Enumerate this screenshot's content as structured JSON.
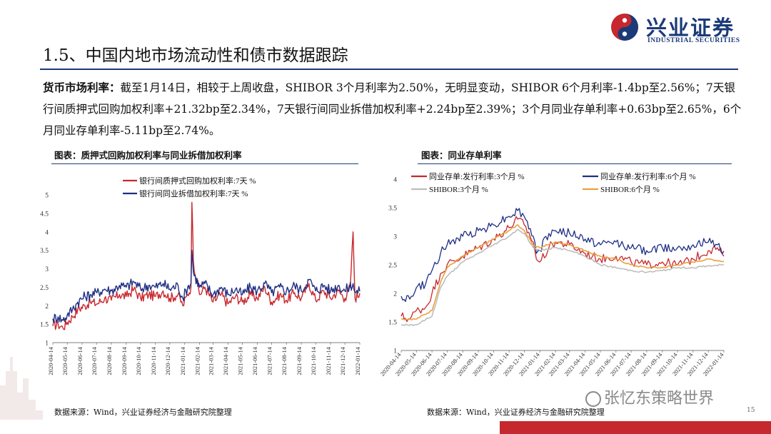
{
  "brand": {
    "name_cn": "兴业证券",
    "name_en": "INDUSTRIAL SECURITIES"
  },
  "page": {
    "title": "1.5、中国内地市场流动性和债市数据跟踪",
    "number": "15"
  },
  "paragraph": {
    "label": "货币市场利率：",
    "text": "截至1月14日，相较于上周收盘，SHIBOR 3个月利率为2.50%，无明显变动，SHIBOR 6个月利率-1.4bp至2.56%；7天银行间质押式回购加权利率+21.32bp至2.34%，7天银行间同业拆借加权利率+2.24bp至2.39%；3个月同业存单利率+0.63bp至2.65%，6个月同业存单利率-5.11bp至2.74%。"
  },
  "watermark": "张忆东策略世界",
  "colors": {
    "red": "#c8282d",
    "navy": "#1f2f84",
    "gray": "#bdbdbd",
    "orange": "#e8a040",
    "brand": "#1b3a78"
  },
  "chart_data": [
    {
      "type": "line",
      "caption": "图表：质押式回购加权利率与同业拆借加权利率",
      "source": "数据来源：Wind，兴业证券经济与金融研究院整理",
      "ylim": [
        1,
        5
      ],
      "yticks": [
        "1",
        "1.5",
        "2",
        "2.5",
        "3",
        "3.5",
        "4",
        "4.5",
        "5"
      ],
      "x_ticks": [
        "2020-04-14",
        "2020-05-14",
        "2020-06-14",
        "2020-07-14",
        "2020-08-14",
        "2020-09-14",
        "2020-10-14",
        "2020-11-14",
        "2020-12-14",
        "2021-01-14",
        "2021-02-14",
        "2021-03-14",
        "2021-04-14",
        "2021-05-14",
        "2021-06-14",
        "2021-07-14",
        "2021-08-14",
        "2021-09-14",
        "2021-10-14",
        "2021-11-14",
        "2021-12-14",
        "2022-01-14"
      ],
      "x_range": [
        "2020-04-14",
        "2022-01-14"
      ],
      "series": [
        {
          "name": "银行间质押式回购加权利率:7天  %",
          "color": "#c8282d",
          "width": 1.4,
          "points": [
            [
              "2020-04-14",
              1.45
            ],
            [
              "2020-04-25",
              1.5
            ],
            [
              "2020-05-05",
              1.4
            ],
            [
              "2020-05-14",
              1.55
            ],
            [
              "2020-05-25",
              1.7
            ],
            [
              "2020-06-05",
              1.9
            ],
            [
              "2020-06-20",
              2.0
            ],
            [
              "2020-07-01",
              2.1
            ],
            [
              "2020-07-15",
              2.05
            ],
            [
              "2020-07-31",
              2.2
            ],
            [
              "2020-08-14",
              2.15
            ],
            [
              "2020-08-31",
              2.3
            ],
            [
              "2020-09-14",
              2.25
            ],
            [
              "2020-09-30",
              2.45
            ],
            [
              "2020-10-14",
              2.2
            ],
            [
              "2020-10-31",
              2.3
            ],
            [
              "2020-11-14",
              2.25
            ],
            [
              "2020-11-30",
              2.4
            ],
            [
              "2020-12-14",
              2.2
            ],
            [
              "2020-12-31",
              2.3
            ],
            [
              "2021-01-10",
              2.0
            ],
            [
              "2021-01-20",
              2.3
            ],
            [
              "2021-01-27",
              2.5
            ],
            [
              "2021-01-29",
              4.8
            ],
            [
              "2021-02-01",
              3.2
            ],
            [
              "2021-02-14",
              2.3
            ],
            [
              "2021-02-25",
              2.5
            ],
            [
              "2021-03-14",
              2.1
            ],
            [
              "2021-03-31",
              2.3
            ],
            [
              "2021-04-14",
              2.05
            ],
            [
              "2021-04-30",
              2.25
            ],
            [
              "2021-05-14",
              2.1
            ],
            [
              "2021-05-31",
              2.3
            ],
            [
              "2021-06-14",
              2.2
            ],
            [
              "2021-06-30",
              2.5
            ],
            [
              "2021-07-14",
              2.1
            ],
            [
              "2021-07-31",
              2.3
            ],
            [
              "2021-08-14",
              2.15
            ],
            [
              "2021-08-31",
              2.35
            ],
            [
              "2021-09-14",
              2.2
            ],
            [
              "2021-09-30",
              2.6
            ],
            [
              "2021-10-14",
              2.15
            ],
            [
              "2021-10-31",
              2.4
            ],
            [
              "2021-11-14",
              2.2
            ],
            [
              "2021-11-30",
              2.4
            ],
            [
              "2021-12-14",
              2.2
            ],
            [
              "2021-12-25",
              2.5
            ],
            [
              "2021-12-31",
              4.0
            ],
            [
              "2022-01-04",
              2.2
            ],
            [
              "2022-01-14",
              2.34
            ]
          ]
        },
        {
          "name": "银行间同业拆借加权利率:7天  %",
          "color": "#1f2f84",
          "width": 1.4,
          "points": [
            [
              "2020-04-14",
              1.65
            ],
            [
              "2020-04-25",
              1.7
            ],
            [
              "2020-05-05",
              1.6
            ],
            [
              "2020-05-14",
              1.75
            ],
            [
              "2020-05-25",
              1.9
            ],
            [
              "2020-06-05",
              2.1
            ],
            [
              "2020-06-20",
              2.25
            ],
            [
              "2020-07-01",
              2.3
            ],
            [
              "2020-07-15",
              2.35
            ],
            [
              "2020-07-31",
              2.45
            ],
            [
              "2020-08-14",
              2.4
            ],
            [
              "2020-08-31",
              2.55
            ],
            [
              "2020-09-14",
              2.5
            ],
            [
              "2020-09-30",
              2.65
            ],
            [
              "2020-10-14",
              2.45
            ],
            [
              "2020-10-31",
              2.55
            ],
            [
              "2020-11-14",
              2.5
            ],
            [
              "2020-11-30",
              2.6
            ],
            [
              "2020-12-14",
              2.45
            ],
            [
              "2020-12-31",
              2.55
            ],
            [
              "2021-01-10",
              2.2
            ],
            [
              "2021-01-20",
              2.5
            ],
            [
              "2021-01-27",
              2.6
            ],
            [
              "2021-01-29",
              3.5
            ],
            [
              "2021-02-01",
              2.9
            ],
            [
              "2021-02-14",
              2.5
            ],
            [
              "2021-02-25",
              2.6
            ],
            [
              "2021-03-14",
              2.3
            ],
            [
              "2021-03-31",
              2.5
            ],
            [
              "2021-04-14",
              2.3
            ],
            [
              "2021-04-30",
              2.45
            ],
            [
              "2021-05-14",
              2.3
            ],
            [
              "2021-05-31",
              2.5
            ],
            [
              "2021-06-14",
              2.4
            ],
            [
              "2021-06-30",
              2.6
            ],
            [
              "2021-07-14",
              2.35
            ],
            [
              "2021-07-31",
              2.5
            ],
            [
              "2021-08-14",
              2.4
            ],
            [
              "2021-08-31",
              2.55
            ],
            [
              "2021-09-14",
              2.4
            ],
            [
              "2021-09-30",
              2.7
            ],
            [
              "2021-10-14",
              2.4
            ],
            [
              "2021-10-31",
              2.55
            ],
            [
              "2021-11-14",
              2.4
            ],
            [
              "2021-11-30",
              2.55
            ],
            [
              "2021-12-14",
              2.4
            ],
            [
              "2021-12-31",
              2.6
            ],
            [
              "2022-01-04",
              2.35
            ],
            [
              "2022-01-14",
              2.39
            ]
          ]
        }
      ]
    },
    {
      "type": "line",
      "caption": "图表：同业存单利率",
      "source": "数据来源：Wind，兴业证券经济与金融研究院整理",
      "ylim": [
        1,
        4
      ],
      "yticks": [
        "1",
        "1.5",
        "2",
        "2.5",
        "3",
        "3.5",
        "4"
      ],
      "x_ticks": [
        "2020-04-14",
        "2020-05-14",
        "2020-06-14",
        "2020-07-14",
        "2020-08-14",
        "2020-09-14",
        "2020-10-14",
        "2020-11-14",
        "2020-12-14",
        "2021-01-14",
        "2021-02-14",
        "2021-03-14",
        "2021-04-14",
        "2021-05-14",
        "2021-06-14",
        "2021-07-14",
        "2021-08-14",
        "2021-09-14",
        "2021-10-14",
        "2021-11-14",
        "2021-12-14",
        "2022-01-14"
      ],
      "x_range": [
        "2020-04-14",
        "2022-01-14"
      ],
      "series": [
        {
          "name": "同业存单:发行利率:3个月  %",
          "color": "#c8282d",
          "width": 1.3,
          "points": [
            [
              "2020-04-14",
              1.6
            ],
            [
              "2020-05-01",
              1.55
            ],
            [
              "2020-05-14",
              1.7
            ],
            [
              "2020-06-01",
              1.75
            ],
            [
              "2020-06-14",
              2.0
            ],
            [
              "2020-07-01",
              2.35
            ],
            [
              "2020-07-14",
              2.5
            ],
            [
              "2020-08-14",
              2.65
            ],
            [
              "2020-09-14",
              2.8
            ],
            [
              "2020-10-14",
              2.95
            ],
            [
              "2020-11-14",
              3.15
            ],
            [
              "2020-12-01",
              3.3
            ],
            [
              "2020-12-14",
              3.2
            ],
            [
              "2021-01-01",
              2.9
            ],
            [
              "2021-01-07",
              2.6
            ],
            [
              "2021-01-14",
              2.55
            ],
            [
              "2021-02-01",
              2.8
            ],
            [
              "2021-02-14",
              2.9
            ],
            [
              "2021-03-14",
              2.85
            ],
            [
              "2021-04-14",
              2.7
            ],
            [
              "2021-05-14",
              2.6
            ],
            [
              "2021-06-14",
              2.65
            ],
            [
              "2021-07-14",
              2.55
            ],
            [
              "2021-08-14",
              2.5
            ],
            [
              "2021-09-14",
              2.55
            ],
            [
              "2021-10-14",
              2.5
            ],
            [
              "2021-11-14",
              2.6
            ],
            [
              "2021-12-14",
              2.75
            ],
            [
              "2022-01-01",
              2.8
            ],
            [
              "2022-01-14",
              2.65
            ]
          ]
        },
        {
          "name": "同业存单:发行利率:6个月  %",
          "color": "#1f2f84",
          "width": 1.3,
          "points": [
            [
              "2020-04-14",
              1.95
            ],
            [
              "2020-05-01",
              1.9
            ],
            [
              "2020-05-14",
              2.1
            ],
            [
              "2020-06-01",
              2.15
            ],
            [
              "2020-06-14",
              2.4
            ],
            [
              "2020-07-01",
              2.7
            ],
            [
              "2020-07-14",
              2.85
            ],
            [
              "2020-08-14",
              3.0
            ],
            [
              "2020-09-14",
              3.1
            ],
            [
              "2020-10-14",
              3.2
            ],
            [
              "2020-11-14",
              3.35
            ],
            [
              "2020-12-01",
              3.45
            ],
            [
              "2020-12-14",
              3.35
            ],
            [
              "2021-01-01",
              3.0
            ],
            [
              "2021-01-07",
              2.7
            ],
            [
              "2021-01-14",
              2.75
            ],
            [
              "2021-02-01",
              3.05
            ],
            [
              "2021-02-14",
              3.1
            ],
            [
              "2021-03-14",
              3.05
            ],
            [
              "2021-04-14",
              2.95
            ],
            [
              "2021-05-14",
              2.85
            ],
            [
              "2021-06-14",
              2.9
            ],
            [
              "2021-07-14",
              2.8
            ],
            [
              "2021-08-14",
              2.75
            ],
            [
              "2021-09-14",
              2.8
            ],
            [
              "2021-10-14",
              2.8
            ],
            [
              "2021-11-14",
              2.85
            ],
            [
              "2021-12-14",
              2.9
            ],
            [
              "2022-01-01",
              2.85
            ],
            [
              "2022-01-14",
              2.74
            ]
          ]
        },
        {
          "name": "SHIBOR:3个月  %",
          "color": "#bdbdbd",
          "width": 1.6,
          "points": [
            [
              "2020-04-14",
              1.45
            ],
            [
              "2020-05-14",
              1.45
            ],
            [
              "2020-06-14",
              1.6
            ],
            [
              "2020-07-01",
              2.1
            ],
            [
              "2020-07-14",
              2.3
            ],
            [
              "2020-08-14",
              2.55
            ],
            [
              "2020-09-14",
              2.7
            ],
            [
              "2020-10-14",
              2.85
            ],
            [
              "2020-11-14",
              3.0
            ],
            [
              "2020-12-01",
              3.12
            ],
            [
              "2020-12-14",
              3.05
            ],
            [
              "2021-01-01",
              2.8
            ],
            [
              "2021-01-14",
              2.75
            ],
            [
              "2021-02-14",
              2.8
            ],
            [
              "2021-03-14",
              2.75
            ],
            [
              "2021-04-14",
              2.65
            ],
            [
              "2021-05-14",
              2.5
            ],
            [
              "2021-06-14",
              2.45
            ],
            [
              "2021-07-14",
              2.4
            ],
            [
              "2021-08-14",
              2.37
            ],
            [
              "2021-09-14",
              2.4
            ],
            [
              "2021-10-14",
              2.45
            ],
            [
              "2021-11-14",
              2.45
            ],
            [
              "2021-12-14",
              2.48
            ],
            [
              "2022-01-14",
              2.5
            ]
          ]
        },
        {
          "name": "SHIBOR:6个月  %",
          "color": "#e8a040",
          "width": 1.6,
          "points": [
            [
              "2020-04-14",
              1.55
            ],
            [
              "2020-05-14",
              1.55
            ],
            [
              "2020-06-14",
              1.7
            ],
            [
              "2020-07-01",
              2.2
            ],
            [
              "2020-07-14",
              2.45
            ],
            [
              "2020-08-14",
              2.65
            ],
            [
              "2020-09-14",
              2.8
            ],
            [
              "2020-10-14",
              2.95
            ],
            [
              "2020-11-14",
              3.1
            ],
            [
              "2020-12-01",
              3.2
            ],
            [
              "2020-12-14",
              3.1
            ],
            [
              "2021-01-01",
              2.85
            ],
            [
              "2021-01-14",
              2.8
            ],
            [
              "2021-02-14",
              2.9
            ],
            [
              "2021-03-14",
              2.85
            ],
            [
              "2021-04-14",
              2.75
            ],
            [
              "2021-05-14",
              2.65
            ],
            [
              "2021-06-14",
              2.6
            ],
            [
              "2021-07-14",
              2.5
            ],
            [
              "2021-08-14",
              2.45
            ],
            [
              "2021-09-14",
              2.45
            ],
            [
              "2021-10-14",
              2.5
            ],
            [
              "2021-11-14",
              2.55
            ],
            [
              "2021-12-14",
              2.6
            ],
            [
              "2022-01-14",
              2.56
            ]
          ]
        }
      ]
    }
  ]
}
